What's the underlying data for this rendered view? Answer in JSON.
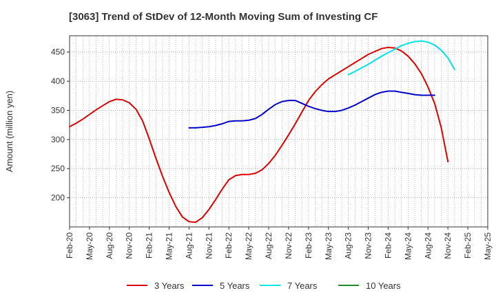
{
  "chart_data": {
    "type": "line",
    "title": "[3063]  Trend of StDev of 12-Month Moving Sum of Investing CF",
    "xlabel": "",
    "ylabel": "Amount (million yen)",
    "x_tick_labels": [
      "Feb-20",
      "May-20",
      "Aug-20",
      "Nov-20",
      "Feb-21",
      "May-21",
      "Aug-21",
      "Nov-21",
      "Feb-22",
      "May-22",
      "Aug-22",
      "Nov-22",
      "Feb-23",
      "May-23",
      "Aug-23",
      "Nov-23",
      "Feb-24",
      "May-24",
      "Aug-24",
      "Nov-24",
      "Feb-25",
      "May-25"
    ],
    "y_ticks": [
      200,
      250,
      300,
      350,
      400,
      450
    ],
    "ylim": [
      150,
      478
    ],
    "grid": true,
    "legend_position": "bottom",
    "series": [
      {
        "name": "3 Years",
        "color": "#dd0000",
        "start_index": 0,
        "values": [
          322,
          328,
          335,
          343,
          351,
          358,
          365,
          369,
          368,
          363,
          352,
          332,
          301,
          268,
          237,
          209,
          185,
          167,
          159,
          158,
          166,
          180,
          197,
          215,
          231,
          238,
          240,
          240,
          242,
          248,
          259,
          273,
          290,
          308,
          327,
          347,
          367,
          382,
          394,
          404,
          411,
          418,
          425,
          432,
          439,
          446,
          451,
          456,
          458,
          457,
          452,
          443,
          430,
          413,
          390,
          362,
          320,
          262
        ]
      },
      {
        "name": "5 Years",
        "color": "#0000cc",
        "start_index": 18,
        "values": [
          320,
          320,
          321,
          322,
          324,
          327,
          331,
          332,
          332,
          333,
          336,
          343,
          352,
          360,
          365,
          367,
          367,
          362,
          357,
          353,
          350,
          348,
          348,
          350,
          354,
          359,
          365,
          371,
          377,
          381,
          383,
          383,
          381,
          379,
          377,
          376,
          376,
          376
        ]
      },
      {
        "name": "7 Years",
        "color": "#00e5e5",
        "start_index": 42,
        "values": [
          411,
          417,
          423,
          429,
          436,
          443,
          449,
          455,
          461,
          465,
          468,
          469,
          467,
          462,
          453,
          440,
          420
        ]
      },
      {
        "name": "10 Years",
        "color": "#228b22",
        "start_index": 0,
        "values": []
      }
    ]
  }
}
